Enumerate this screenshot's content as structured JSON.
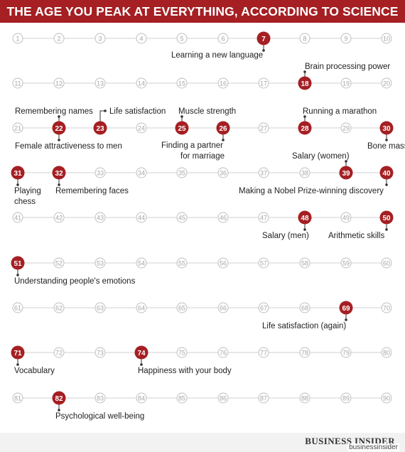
{
  "title": "THE AGE YOU PEAK AT EVERYTHING, ACCORDING TO SCIENCE",
  "colors": {
    "accent": "#a51f23",
    "circle_fill": "#ffffff",
    "circle_stroke": "#bfbfbf",
    "line": "#d9d9d9",
    "muted_text": "#a6a6a6",
    "label_text": "#222222"
  },
  "ages": {
    "first": 1,
    "last": 90,
    "per_row": 10
  },
  "peaks": [
    {
      "age": 7,
      "labels": [
        "Learning a new language"
      ]
    },
    {
      "age": 18,
      "labels": [
        "Brain processing power"
      ]
    },
    {
      "age": 22,
      "labels": [
        "Remembering names",
        "Female attractiveness to men"
      ]
    },
    {
      "age": 23,
      "labels": [
        "Life satisfaction"
      ]
    },
    {
      "age": 25,
      "labels": [
        "Muscle strength"
      ]
    },
    {
      "age": 26,
      "labels": [
        "Finding a partner",
        "for marriage"
      ]
    },
    {
      "age": 28,
      "labels": [
        "Running a marathon"
      ]
    },
    {
      "age": 30,
      "labels": [
        "Bone mass"
      ]
    },
    {
      "age": 31,
      "labels": [
        "Playing",
        "chess"
      ]
    },
    {
      "age": 32,
      "labels": [
        "Remembering faces"
      ]
    },
    {
      "age": 39,
      "labels": [
        "Salary (women)"
      ]
    },
    {
      "age": 40,
      "labels": [
        "Making a Nobel Prize-winning discovery"
      ]
    },
    {
      "age": 48,
      "labels": [
        "Salary (men)"
      ]
    },
    {
      "age": 50,
      "labels": [
        "Arithmetic skills"
      ]
    },
    {
      "age": 51,
      "labels": [
        "Understanding people's emotions"
      ]
    },
    {
      "age": 69,
      "labels": [
        "Life satisfaction (again)"
      ]
    },
    {
      "age": 71,
      "labels": [
        "Vocabulary"
      ]
    },
    {
      "age": 74,
      "labels": [
        "Happiness with your body"
      ]
    },
    {
      "age": 82,
      "labels": [
        "Psychological well-being"
      ]
    }
  ],
  "brand": "BUSINESS INSIDER",
  "watermark": "businessinsider"
}
